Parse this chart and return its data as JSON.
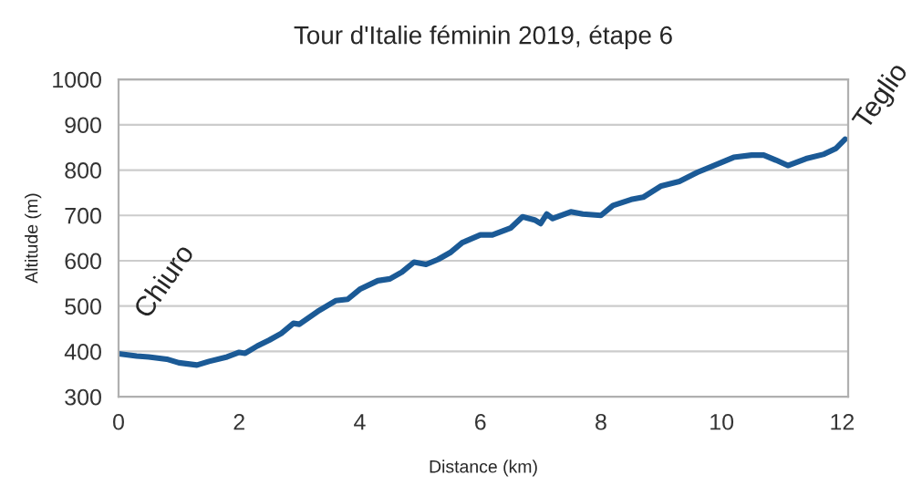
{
  "chart_data": {
    "type": "line",
    "title": "Tour d'Italie féminin 2019, étape 6",
    "xlabel": "Distance (km)",
    "ylabel": "Altitude (m)",
    "series": [
      {
        "color": "#1b5a96",
        "x": [
          0,
          0.3,
          0.5,
          0.8,
          1.0,
          1.3,
          1.5,
          1.8,
          2.0,
          2.1,
          2.3,
          2.5,
          2.7,
          2.9,
          3.0,
          3.3,
          3.6,
          3.8,
          4.0,
          4.3,
          4.5,
          4.7,
          4.9,
          5.1,
          5.3,
          5.5,
          5.7,
          6.0,
          6.2,
          6.5,
          6.7,
          6.9,
          7.0,
          7.1,
          7.2,
          7.5,
          7.7,
          8.0,
          8.2,
          8.5,
          8.7,
          9.0,
          9.3,
          9.6,
          10.0,
          10.2,
          10.5,
          10.7,
          10.9,
          11.1,
          11.4,
          11.7,
          11.9,
          12.05
        ],
        "values": [
          395,
          390,
          388,
          383,
          375,
          370,
          378,
          388,
          398,
          396,
          412,
          425,
          440,
          462,
          460,
          488,
          512,
          515,
          537,
          556,
          560,
          575,
          597,
          592,
          603,
          618,
          640,
          657,
          657,
          672,
          697,
          690,
          682,
          703,
          693,
          708,
          703,
          700,
          722,
          735,
          740,
          765,
          775,
          795,
          817,
          828,
          833,
          833,
          822,
          810,
          825,
          835,
          848,
          868
        ]
      }
    ],
    "annotations": [
      {
        "text": "Chiuro",
        "x": 0,
        "y": 395
      },
      {
        "text": "Teglio",
        "x": 12.05,
        "y": 868
      }
    ],
    "xlim": [
      0,
      12.1
    ],
    "xticks": [
      0,
      2,
      4,
      6,
      8,
      10,
      12
    ],
    "ylim": [
      300,
      1000
    ],
    "yticks": [
      300,
      400,
      500,
      600,
      700,
      800,
      900,
      1000
    ],
    "grid": "y",
    "marker": "none",
    "line_style": "solid",
    "legend": false
  }
}
